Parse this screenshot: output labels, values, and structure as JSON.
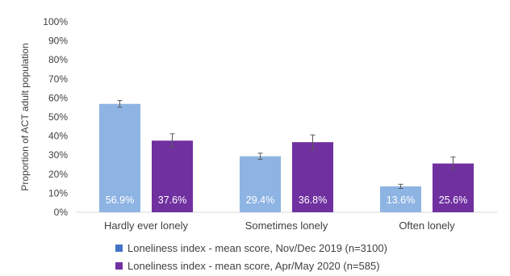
{
  "chart_data": {
    "type": "bar",
    "title": "",
    "xlabel": "",
    "ylabel": "Proportion of ACT adult population",
    "ylim": [
      0,
      100
    ],
    "yticks": [
      "0%",
      "10%",
      "20%",
      "30%",
      "40%",
      "50%",
      "60%",
      "70%",
      "80%",
      "90%",
      "100%"
    ],
    "categories": [
      "Hardly ever lonely",
      "Sometimes lonely",
      "Often lonely"
    ],
    "series": [
      {
        "name": "Loneliness index - mean score, Nov/Dec 2019 (n=3100)",
        "color": "#8EB4E3",
        "legend_color": "#4472C4",
        "values": [
          56.9,
          29.4,
          13.6
        ],
        "labels": [
          "56.9%",
          "29.4%",
          "13.6%"
        ],
        "error": [
          1.8,
          1.6,
          1.1
        ]
      },
      {
        "name": "Loneliness index - mean score, Apr/May 2020 (n=585)",
        "color": "#7030A0",
        "legend_color": "#7030A0",
        "values": [
          37.6,
          36.8,
          25.6
        ],
        "labels": [
          "37.6%",
          "36.8%",
          "25.6%"
        ],
        "error": [
          3.6,
          3.8,
          3.4
        ]
      }
    ],
    "grid": false,
    "legend_position": "bottom"
  }
}
